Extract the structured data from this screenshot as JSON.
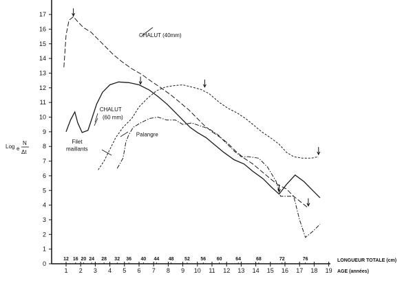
{
  "chart_data": {
    "type": "line",
    "title": "",
    "ylabel": "Log_e N/Δt",
    "ylabel_parts": {
      "log": "Log",
      "sub": "e",
      "num": "N",
      "den": "Δt"
    },
    "xlabel": "AGE (années)",
    "x2label": "LONGUEUR TOTALE (cm)",
    "ylim": [
      0,
      17
    ],
    "xlim": [
      0,
      19
    ],
    "grid": false,
    "legend_position": "inline labels",
    "y_ticks": [
      0,
      1,
      2,
      3,
      4,
      5,
      6,
      7,
      8,
      9,
      10,
      11,
      12,
      13,
      14,
      15,
      16,
      17
    ],
    "x_ticks": [
      1,
      2,
      3,
      4,
      5,
      6,
      7,
      8,
      9,
      10,
      11,
      12,
      13,
      14,
      15,
      16,
      17,
      18,
      19
    ],
    "length_ticks": [
      {
        "label": "12",
        "age": 1.0
      },
      {
        "label": "16",
        "age": 1.65
      },
      {
        "label": "20",
        "age": 2.2
      },
      {
        "label": "24",
        "age": 2.75
      },
      {
        "label": "28",
        "age": 3.6
      },
      {
        "label": "32",
        "age": 4.5
      },
      {
        "label": "36",
        "age": 5.3
      },
      {
        "label": "40",
        "age": 6.3
      },
      {
        "label": "44",
        "age": 7.2
      },
      {
        "label": "48",
        "age": 8.2
      },
      {
        "label": "52",
        "age": 9.3
      },
      {
        "label": "56",
        "age": 10.4
      },
      {
        "label": "60",
        "age": 11.5
      },
      {
        "label": "64",
        "age": 12.8
      },
      {
        "label": "68",
        "age": 14.2
      },
      {
        "label": "72",
        "age": 15.8
      },
      {
        "label": "76",
        "age": 17.4
      }
    ],
    "series": [
      {
        "name": "CHALUT (40 mm)",
        "style": "long-dash",
        "points": [
          [
            0.85,
            13.4
          ],
          [
            1.0,
            15.6
          ],
          [
            1.2,
            16.6
          ],
          [
            1.5,
            16.85
          ],
          [
            1.8,
            16.5
          ],
          [
            2.2,
            16.1
          ],
          [
            2.7,
            15.8
          ],
          [
            3.2,
            15.3
          ],
          [
            3.7,
            14.8
          ],
          [
            4.2,
            14.3
          ],
          [
            4.8,
            13.8
          ],
          [
            5.5,
            13.3
          ],
          [
            6.2,
            12.9
          ],
          [
            6.9,
            12.4
          ],
          [
            7.5,
            12.0
          ],
          [
            8.2,
            11.5
          ],
          [
            8.8,
            11.0
          ],
          [
            9.4,
            10.5
          ],
          [
            10.0,
            9.9
          ],
          [
            10.5,
            9.4
          ],
          [
            11.0,
            9.0
          ],
          [
            11.6,
            8.6
          ],
          [
            12.1,
            8.2
          ],
          [
            12.6,
            7.7
          ],
          [
            13.2,
            7.2
          ],
          [
            13.8,
            6.8
          ],
          [
            14.4,
            6.3
          ],
          [
            15.0,
            5.8
          ],
          [
            15.5,
            5.4
          ],
          [
            16.1,
            5.1
          ],
          [
            16.6,
            4.6
          ],
          [
            17.1,
            4.2
          ],
          [
            17.6,
            3.8
          ]
        ],
        "arrows": [
          [
            1.5,
            16.85
          ],
          [
            17.6,
            3.9
          ]
        ]
      },
      {
        "name": "CHALUT (60 mm)",
        "style": "solid",
        "points": [
          [
            1.0,
            9.0
          ],
          [
            1.3,
            9.8
          ],
          [
            1.6,
            10.35
          ],
          [
            1.8,
            9.6
          ],
          [
            2.1,
            8.95
          ],
          [
            2.5,
            9.1
          ],
          [
            2.8,
            10.0
          ],
          [
            3.1,
            10.9
          ],
          [
            3.5,
            11.7
          ],
          [
            4.0,
            12.2
          ],
          [
            4.6,
            12.4
          ],
          [
            5.3,
            12.35
          ],
          [
            6.0,
            12.2
          ],
          [
            6.7,
            11.85
          ],
          [
            7.3,
            11.4
          ],
          [
            7.9,
            10.9
          ],
          [
            8.5,
            10.3
          ],
          [
            9.0,
            9.8
          ],
          [
            9.5,
            9.3
          ],
          [
            10.0,
            8.95
          ],
          [
            10.6,
            8.6
          ],
          [
            11.2,
            8.1
          ],
          [
            11.8,
            7.6
          ],
          [
            12.5,
            7.1
          ],
          [
            13.2,
            6.8
          ],
          [
            13.8,
            6.3
          ],
          [
            14.5,
            5.8
          ],
          [
            15.1,
            5.2
          ],
          [
            15.6,
            4.75
          ],
          [
            16.1,
            5.4
          ],
          [
            16.7,
            6.05
          ],
          [
            17.3,
            5.6
          ],
          [
            17.9,
            5.0
          ],
          [
            18.4,
            4.5
          ]
        ],
        "arrows": [
          [
            6.1,
            12.2
          ],
          [
            15.6,
            4.85
          ]
        ]
      },
      {
        "name": "Filet maillants",
        "style": "short-dash",
        "points": [
          [
            3.2,
            6.4
          ],
          [
            3.6,
            7.0
          ],
          [
            4.0,
            7.8
          ],
          [
            4.4,
            8.6
          ],
          [
            4.9,
            9.3
          ],
          [
            5.5,
            9.9
          ],
          [
            6.0,
            10.7
          ],
          [
            6.6,
            11.3
          ],
          [
            7.2,
            11.8
          ],
          [
            7.8,
            12.05
          ],
          [
            8.4,
            12.15
          ],
          [
            9.0,
            12.2
          ],
          [
            9.6,
            12.05
          ],
          [
            10.2,
            11.9
          ],
          [
            10.8,
            11.6
          ],
          [
            11.5,
            11.0
          ],
          [
            12.1,
            10.6
          ],
          [
            12.7,
            10.3
          ],
          [
            13.3,
            9.9
          ],
          [
            13.8,
            9.5
          ],
          [
            14.4,
            9.0
          ],
          [
            15.0,
            8.6
          ],
          [
            15.6,
            8.15
          ],
          [
            16.1,
            7.6
          ],
          [
            16.6,
            7.3
          ],
          [
            17.2,
            7.2
          ],
          [
            17.8,
            7.2
          ],
          [
            18.3,
            7.3
          ]
        ],
        "arrows": [
          [
            10.5,
            12.0
          ],
          [
            18.3,
            7.4
          ]
        ]
      },
      {
        "name": "Palangre",
        "style": "dash-dot",
        "points": [
          [
            4.5,
            6.5
          ],
          [
            4.9,
            7.2
          ],
          [
            5.1,
            8.3
          ],
          [
            5.3,
            8.8
          ],
          [
            5.6,
            9.3
          ],
          [
            6.1,
            9.6
          ],
          [
            6.7,
            9.9
          ],
          [
            7.3,
            10.0
          ],
          [
            7.9,
            9.8
          ],
          [
            8.5,
            9.8
          ],
          [
            9.0,
            9.5
          ],
          [
            9.6,
            9.6
          ],
          [
            10.2,
            9.4
          ],
          [
            10.8,
            9.2
          ],
          [
            11.4,
            8.8
          ],
          [
            12.0,
            8.2
          ],
          [
            12.5,
            7.7
          ],
          [
            13.0,
            7.3
          ],
          [
            13.5,
            7.3
          ],
          [
            14.2,
            7.2
          ],
          [
            14.8,
            6.6
          ],
          [
            15.4,
            5.6
          ],
          [
            15.7,
            4.6
          ],
          [
            16.3,
            4.6
          ],
          [
            16.6,
            4.6
          ],
          [
            17.0,
            3.0
          ],
          [
            17.4,
            1.8
          ],
          [
            17.9,
            2.2
          ],
          [
            18.4,
            2.7
          ]
        ],
        "arrows": []
      }
    ],
    "annotations": [
      {
        "text": "CHALUT (40mm)",
        "x": 6.0,
        "y": 15.45
      },
      {
        "text": "CHALUT",
        "x": 3.3,
        "y": 10.4
      },
      {
        "text": "(60 mm)",
        "x": 3.5,
        "y": 9.85
      },
      {
        "text": "Filet",
        "x": 1.4,
        "y": 8.2
      },
      {
        "text": "maillants",
        "x": 1.0,
        "y": 7.7
      },
      {
        "text": "Palangre",
        "x": 5.8,
        "y": 8.7
      }
    ]
  }
}
